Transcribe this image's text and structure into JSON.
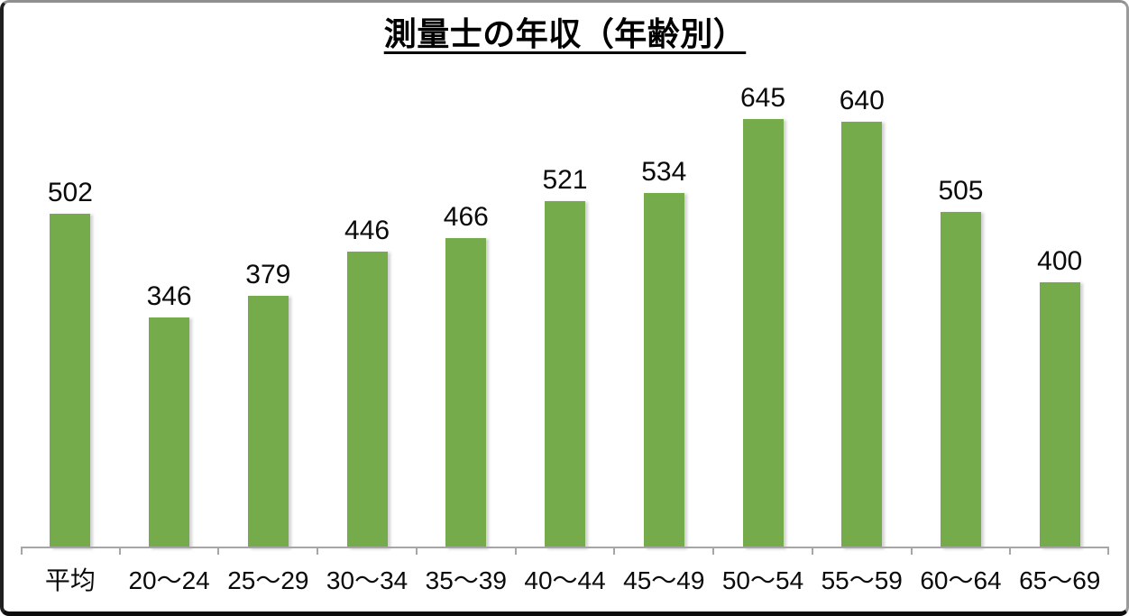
{
  "chart_data": {
    "type": "bar",
    "title": "測量士の年収（年齢別）",
    "categories": [
      "平均",
      "20〜24",
      "25〜29",
      "30〜34",
      "35〜39",
      "40〜44",
      "45〜49",
      "50〜54",
      "55〜59",
      "60〜64",
      "65〜69"
    ],
    "values": [
      502,
      346,
      379,
      446,
      466,
      521,
      534,
      645,
      640,
      505,
      400
    ],
    "xlabel": "",
    "ylabel": "",
    "ylim": [
      0,
      700
    ],
    "grid": false,
    "legend_position": "none",
    "data_labels": true,
    "bar_color": "#76AB4B",
    "axis_color": "#A6A6A6",
    "label_color": "#0A0A0A",
    "title_color": "#000000",
    "background_color": "#FFFFFF"
  }
}
